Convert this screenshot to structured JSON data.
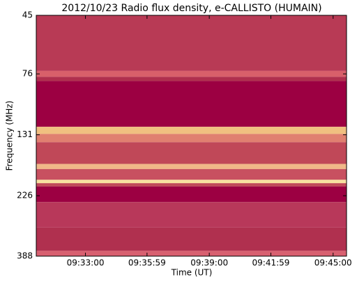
{
  "chart_data": {
    "type": "spectrogram",
    "title": "2012/10/23  Radio flux density, e-CALLISTO (HUMAIN)",
    "x_label": "Time (UT)",
    "y_label": "Frequency (MHz)",
    "xlim": [
      "09:30:37",
      "09:45:39"
    ],
    "xticks": [
      "09:33:00",
      "09:35:59",
      "09:39:00",
      "09:41:59",
      "09:45:00"
    ],
    "ylim": [
      45,
      388
    ],
    "yticks": [
      45,
      76,
      131,
      226,
      388
    ],
    "log_scale": true,
    "y_inverted": true,
    "bands": [
      {
        "lo": 45,
        "hi": 74,
        "color": "#b83a55"
      },
      {
        "lo": 74,
        "hi": 78,
        "color": "#d8606a"
      },
      {
        "lo": 78,
        "hi": 81,
        "color": "#b0304e"
      },
      {
        "lo": 81,
        "hi": 122,
        "color": "#9c0042"
      },
      {
        "lo": 122,
        "hi": 130,
        "color": "#f0c080"
      },
      {
        "lo": 130,
        "hi": 140,
        "color": "#e08070"
      },
      {
        "lo": 140,
        "hi": 170,
        "color": "#c04858"
      },
      {
        "lo": 170,
        "hi": 178,
        "color": "#f0b888"
      },
      {
        "lo": 178,
        "hi": 196,
        "color": "#c85060"
      },
      {
        "lo": 196,
        "hi": 202,
        "color": "#f8e0a0"
      },
      {
        "lo": 202,
        "hi": 208,
        "color": "#c04858"
      },
      {
        "lo": 208,
        "hi": 239,
        "color": "#9c0042"
      },
      {
        "lo": 239,
        "hi": 300,
        "color": "#b8385a"
      },
      {
        "lo": 300,
        "hi": 370,
        "color": "#b0304f"
      },
      {
        "lo": 370,
        "hi": 388,
        "color": "#d86070"
      }
    ]
  }
}
